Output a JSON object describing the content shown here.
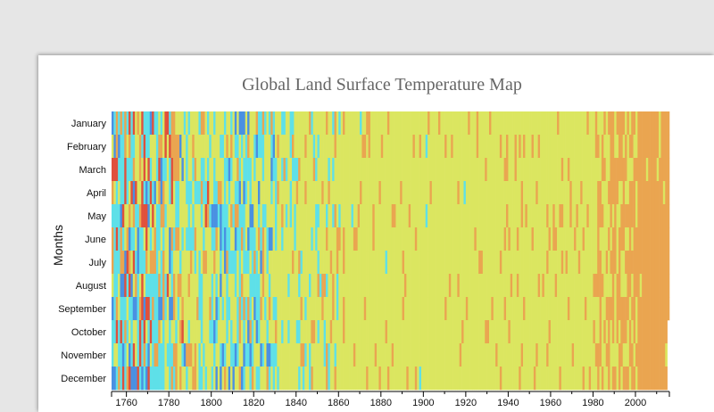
{
  "chart_data": {
    "type": "heatmap",
    "title": "Global Land Surface Temperature Map",
    "ylabel": "Months",
    "xlabel": "",
    "months": [
      "January",
      "February",
      "March",
      "April",
      "May",
      "June",
      "July",
      "August",
      "September",
      "October",
      "November",
      "December"
    ],
    "x_ticks": [
      1760,
      1780,
      1800,
      1820,
      1840,
      1860,
      1880,
      1900,
      1920,
      1940,
      1960,
      1980,
      2000
    ],
    "xlim": [
      1753,
      2015
    ],
    "legend": "none",
    "colors": {
      "cold": "#4a90e2",
      "cool": "#5ee0e8",
      "neutral": "#dbe660",
      "warm": "#eaa550",
      "hot": "#e0503c"
    },
    "level_scale": "0=cold,1=cool,2=neutral,3=warm,4=hot",
    "periods": [
      {
        "years": [
          1753,
          1772
        ],
        "levels": [
          0.15,
          0.35,
          0.2,
          0.15,
          0.15
        ]
      },
      {
        "years": [
          1773,
          1785
        ],
        "levels": [
          0.07,
          0.3,
          0.4,
          0.18,
          0.05
        ]
      },
      {
        "years": [
          1786,
          1800
        ],
        "levels": [
          0.03,
          0.25,
          0.55,
          0.15,
          0.02
        ]
      },
      {
        "years": [
          1801,
          1830
        ],
        "levels": [
          0.1,
          0.35,
          0.45,
          0.1,
          0.0
        ]
      },
      {
        "years": [
          1831,
          1860
        ],
        "levels": [
          0.0,
          0.15,
          0.75,
          0.1,
          0.0
        ]
      },
      {
        "years": [
          1861,
          1880
        ],
        "levels": [
          0.0,
          0.02,
          0.9,
          0.08,
          0.0
        ]
      },
      {
        "years": [
          1881,
          1920
        ],
        "levels": [
          0.0,
          0.01,
          0.94,
          0.05,
          0.0
        ]
      },
      {
        "years": [
          1921,
          1980
        ],
        "levels": [
          0.0,
          0.0,
          0.88,
          0.12,
          0.0
        ]
      },
      {
        "years": [
          1981,
          2000
        ],
        "levels": [
          0.0,
          0.0,
          0.45,
          0.55,
          0.0
        ]
      },
      {
        "years": [
          2001,
          2015
        ],
        "levels": [
          0.0,
          0.0,
          0.05,
          0.95,
          0.0
        ]
      }
    ],
    "last_year": 2015,
    "last_year_months": 9
  }
}
